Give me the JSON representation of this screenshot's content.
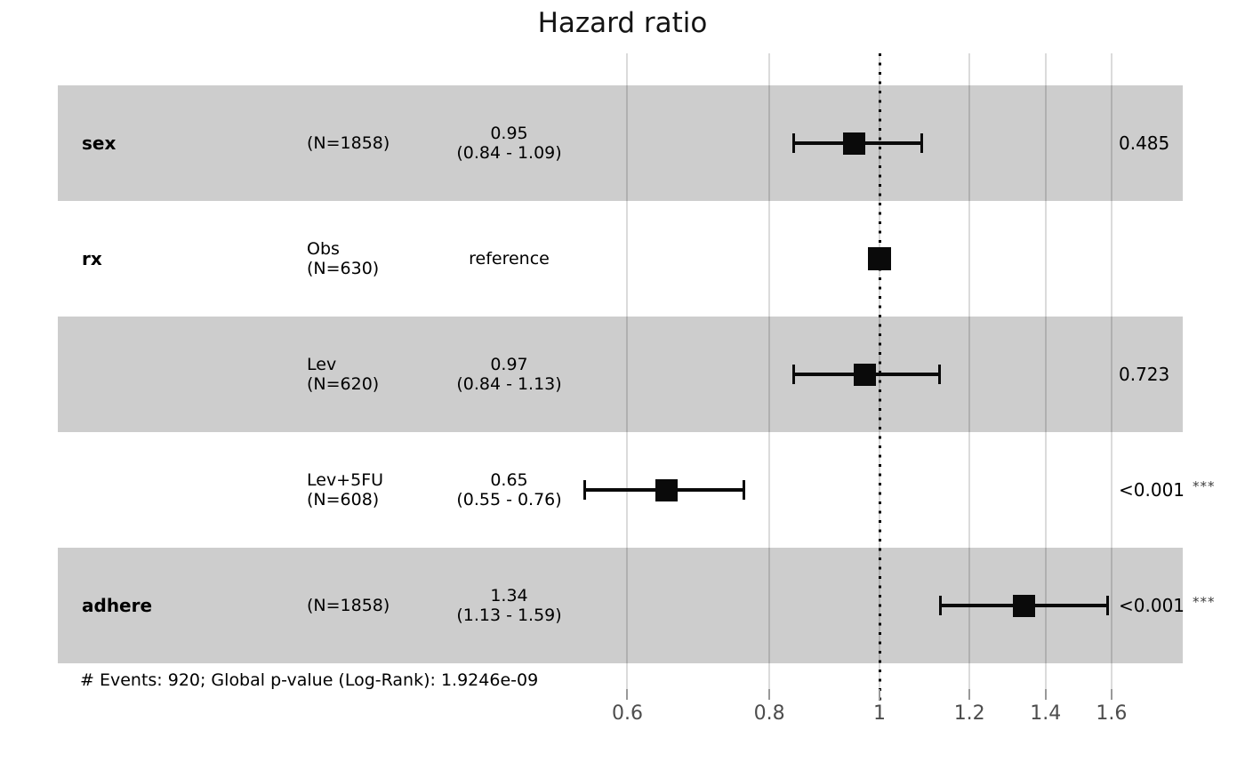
{
  "chart_data": {
    "type": "forest",
    "title": "Hazard ratio",
    "x_scale": "log",
    "x_ticks": [
      {
        "value": 0.6,
        "label": "0.6"
      },
      {
        "value": 0.8,
        "label": "0.8"
      },
      {
        "value": 1,
        "label": "1"
      },
      {
        "value": 1.2,
        "label": "1.2"
      },
      {
        "value": 1.4,
        "label": "1.4"
      },
      {
        "value": 1.6,
        "label": "1.6"
      }
    ],
    "reference_line": 1,
    "grid": true,
    "rows": [
      {
        "variable": "sex",
        "level": "",
        "n": "(N=1858)",
        "estimate_label": "0.95",
        "ci_label": "(0.84 - 1.09)",
        "hr": 0.95,
        "ci_low": 0.84,
        "ci_high": 1.09,
        "p": "0.485",
        "stars": "",
        "shaded": true,
        "reference": false
      },
      {
        "variable": "rx",
        "level": "Obs",
        "n": "(N=630)",
        "estimate_label": "reference",
        "ci_label": "",
        "hr": 1,
        "ci_low": null,
        "ci_high": null,
        "p": "",
        "stars": "",
        "shaded": false,
        "reference": true
      },
      {
        "variable": "",
        "level": "Lev",
        "n": "(N=620)",
        "estimate_label": "0.97",
        "ci_label": "(0.84 - 1.13)",
        "hr": 0.97,
        "ci_low": 0.84,
        "ci_high": 1.13,
        "p": "0.723",
        "stars": "",
        "shaded": true,
        "reference": false
      },
      {
        "variable": "",
        "level": "Lev+5FU",
        "n": "(N=608)",
        "estimate_label": "0.65",
        "ci_label": "(0.55 - 0.76)",
        "hr": 0.65,
        "ci_low": 0.55,
        "ci_high": 0.76,
        "p": "<0.001",
        "stars": "***",
        "shaded": false,
        "reference": false
      },
      {
        "variable": "adhere",
        "level": "",
        "n": "(N=1858)",
        "estimate_label": "1.34",
        "ci_label": "(1.13 - 1.59)",
        "hr": 1.34,
        "ci_low": 1.13,
        "ci_high": 1.59,
        "p": "<0.001",
        "stars": "***",
        "shaded": true,
        "reference": false
      }
    ],
    "footer": "# Events: 920; Global p-value (Log-Rank): 1.9246e-09",
    "colors": {
      "band": "#cdcdcd",
      "marker": "#0a0a0a",
      "axis_text": "#4d4d4d",
      "tick": "#999999"
    }
  }
}
